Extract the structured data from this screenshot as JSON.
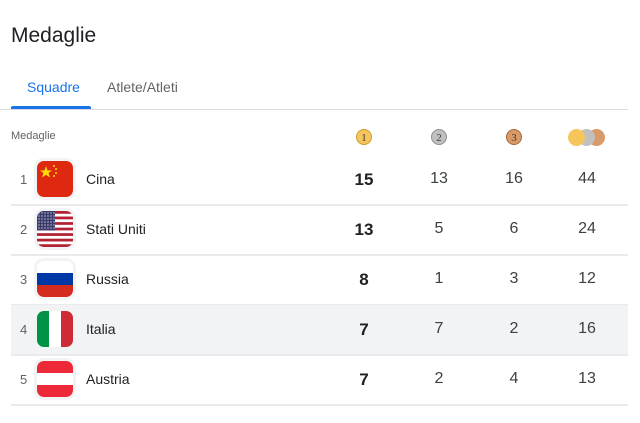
{
  "title": "Medaglie",
  "tabs": [
    {
      "label": "Squadre",
      "active": true
    },
    {
      "label": "Atlete/Atleti",
      "active": false
    }
  ],
  "table": {
    "header_label": "Medaglie",
    "medal_icons": {
      "gold": "1",
      "silver": "2",
      "bronze": "3"
    },
    "rows": [
      {
        "rank": "1",
        "country": "Cina",
        "flag": "china-flag",
        "gold": "15",
        "silver": "13",
        "bronze": "16",
        "total": "44"
      },
      {
        "rank": "2",
        "country": "Stati Uniti",
        "flag": "usa-flag",
        "gold": "13",
        "silver": "5",
        "bronze": "6",
        "total": "24"
      },
      {
        "rank": "3",
        "country": "Russia",
        "flag": "russia-flag",
        "gold": "8",
        "silver": "1",
        "bronze": "3",
        "total": "12"
      },
      {
        "rank": "4",
        "country": "Italia",
        "flag": "italy-flag",
        "gold": "7",
        "silver": "7",
        "bronze": "2",
        "total": "16",
        "highlighted": true
      },
      {
        "rank": "5",
        "country": "Austria",
        "flag": "austria-flag",
        "gold": "7",
        "silver": "2",
        "bronze": "4",
        "total": "13"
      }
    ]
  },
  "colors": {
    "accent": "#1a73e8",
    "highlight_row": "#f1f3f4"
  }
}
